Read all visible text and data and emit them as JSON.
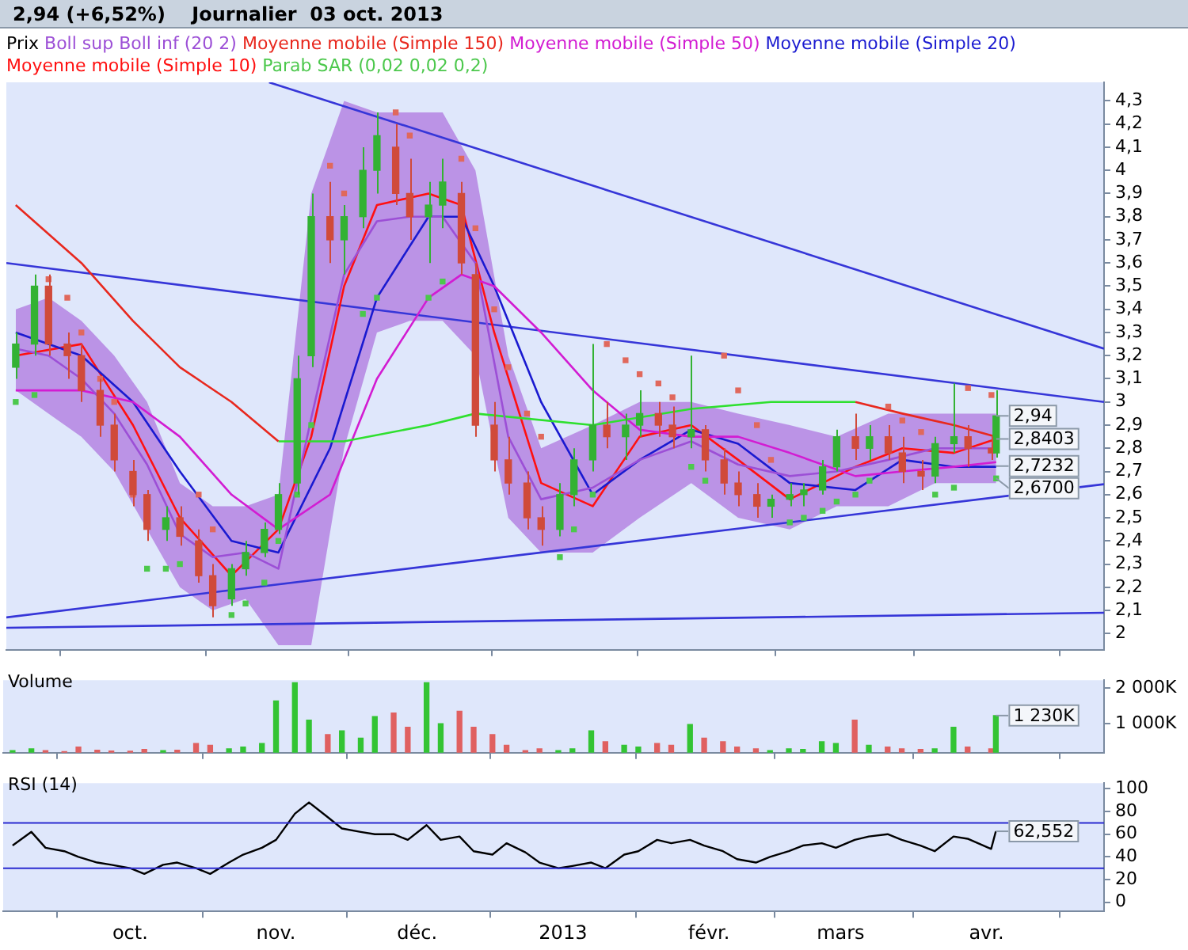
{
  "chart_data": [
    {
      "type": "candlestick",
      "title": "2,94 (+6,52%)",
      "subtitle": "Journalier  03 oct. 2013",
      "legend": "top left",
      "legend_title": "Prix",
      "tick_labels": "y",
      "xlim": [
        "2012-09-04",
        "2013-04-26"
      ],
      "xticks": [
        {
          "value": "2012-10-01",
          "label": null
        },
        {
          "value": "2012-11-01",
          "label": null
        },
        {
          "value": "2012-12-01",
          "label": null
        },
        {
          "value": "2013-01-01",
          "label": null
        },
        {
          "value": "2013-02-01",
          "label": null
        },
        {
          "value": "2013-03-01",
          "label": null
        },
        {
          "value": "2013-04-01",
          "label": null
        }
      ],
      "ylim": [
        1.93,
        4.38
      ],
      "yticks": [
        2,
        {
          "value": 2.1,
          "label": "2,1"
        },
        {
          "value": 2.2,
          "label": "2,2"
        },
        {
          "value": 2.3,
          "label": "2,3"
        },
        {
          "value": 2.4,
          "label": "2,4"
        },
        {
          "value": 2.5,
          "label": "2,5"
        },
        {
          "value": 2.6,
          "label": "2,6"
        },
        {
          "value": 2.7,
          "label": "2,7"
        },
        {
          "value": 2.8,
          "label": "2,8"
        },
        {
          "value": 2.9,
          "label": "2,9"
        },
        3,
        {
          "value": 3.1,
          "label": "3,1"
        },
        {
          "value": 3.2,
          "label": "3,2"
        },
        {
          "value": 3.3,
          "label": "3,3"
        },
        {
          "value": 3.4,
          "label": "3,4"
        },
        {
          "value": 3.5,
          "label": "3,5"
        },
        {
          "value": 3.6,
          "label": "3,6"
        },
        {
          "value": 3.7,
          "label": "3,7"
        },
        {
          "value": 3.8,
          "label": "3,8"
        },
        {
          "value": 3.9,
          "label": "3,9"
        },
        4,
        {
          "value": 4.1,
          "label": "4,1"
        },
        {
          "value": 4.2,
          "label": "4,2"
        },
        {
          "value": 4.3,
          "label": "4,3"
        }
      ],
      "x": [
        "2012-09-06",
        "2012-09-10",
        "2012-09-13",
        "2012-09-17",
        "2012-09-20",
        "2012-09-24",
        "2012-09-27",
        "2012-10-01",
        "2012-10-04",
        "2012-10-08",
        "2012-10-11",
        "2012-10-15",
        "2012-10-18",
        "2012-10-22",
        "2012-10-25",
        "2012-10-29",
        "2012-11-01",
        "2012-11-05",
        "2012-11-08",
        "2012-11-12",
        "2012-11-15",
        "2012-11-19",
        "2012-11-22",
        "2012-11-26",
        "2012-11-29",
        "2012-12-03",
        "2012-12-06",
        "2012-12-10",
        "2012-12-13",
        "2012-12-17",
        "2012-12-20",
        "2012-12-24",
        "2012-12-27",
        "2012-12-31",
        "2013-01-03",
        "2013-01-07",
        "2013-01-10",
        "2013-01-14",
        "2013-01-17",
        "2013-01-21",
        "2013-01-24",
        "2013-01-28",
        "2013-01-31",
        "2013-02-04",
        "2013-02-07",
        "2013-02-11",
        "2013-02-14",
        "2013-02-18",
        "2013-02-21",
        "2013-02-25",
        "2013-02-28",
        "2013-03-04",
        "2013-03-07",
        "2013-03-11",
        "2013-03-14",
        "2013-03-18",
        "2013-03-21",
        "2013-03-25",
        "2013-03-28",
        "2013-04-02",
        "2013-04-03"
      ],
      "ohlc": [
        [
          3.15,
          3.3,
          3.1,
          3.25
        ],
        [
          3.25,
          3.55,
          3.2,
          3.5
        ],
        [
          3.5,
          3.55,
          3.2,
          3.25
        ],
        [
          3.25,
          3.3,
          3.1,
          3.2
        ],
        [
          3.2,
          3.25,
          3.0,
          3.05
        ],
        [
          3.05,
          3.1,
          2.85,
          2.9
        ],
        [
          2.9,
          2.95,
          2.7,
          2.75
        ],
        [
          2.7,
          2.75,
          2.55,
          2.6
        ],
        [
          2.6,
          2.62,
          2.4,
          2.45
        ],
        [
          2.45,
          2.55,
          2.4,
          2.5
        ],
        [
          2.5,
          2.55,
          2.38,
          2.42
        ],
        [
          2.4,
          2.45,
          2.22,
          2.25
        ],
        [
          2.25,
          2.3,
          2.07,
          2.12
        ],
        [
          2.15,
          2.3,
          2.12,
          2.28
        ],
        [
          2.28,
          2.4,
          2.25,
          2.35
        ],
        [
          2.35,
          2.48,
          2.33,
          2.45
        ],
        [
          2.45,
          2.65,
          2.43,
          2.6
        ],
        [
          2.65,
          3.2,
          2.6,
          3.1
        ],
        [
          3.2,
          3.9,
          3.15,
          3.8
        ],
        [
          3.8,
          3.95,
          3.6,
          3.7
        ],
        [
          3.7,
          3.85,
          3.55,
          3.8
        ],
        [
          3.8,
          4.1,
          3.75,
          4.0
        ],
        [
          4.0,
          4.25,
          3.9,
          4.15
        ],
        [
          4.1,
          4.2,
          3.85,
          3.9
        ],
        [
          3.9,
          4.05,
          3.7,
          3.8
        ],
        [
          3.8,
          3.95,
          3.6,
          3.85
        ],
        [
          3.85,
          4.05,
          3.75,
          3.95
        ],
        [
          3.9,
          3.95,
          3.55,
          3.6
        ],
        [
          3.55,
          3.6,
          2.85,
          2.9
        ],
        [
          2.9,
          3.0,
          2.7,
          2.75
        ],
        [
          2.75,
          2.85,
          2.6,
          2.65
        ],
        [
          2.65,
          2.7,
          2.45,
          2.5
        ],
        [
          2.5,
          2.55,
          2.38,
          2.45
        ],
        [
          2.45,
          2.65,
          2.42,
          2.6
        ],
        [
          2.6,
          2.8,
          2.55,
          2.75
        ],
        [
          2.75,
          3.25,
          2.7,
          2.9
        ],
        [
          2.9,
          3.0,
          2.8,
          2.85
        ],
        [
          2.85,
          2.95,
          2.75,
          2.9
        ],
        [
          2.9,
          3.05,
          2.85,
          2.95
        ],
        [
          2.95,
          3.0,
          2.85,
          2.9
        ],
        [
          2.9,
          2.98,
          2.8,
          2.85
        ],
        [
          2.85,
          3.2,
          2.8,
          2.88
        ],
        [
          2.88,
          2.9,
          2.7,
          2.75
        ],
        [
          2.75,
          2.8,
          2.6,
          2.65
        ],
        [
          2.65,
          2.7,
          2.55,
          2.6
        ],
        [
          2.6,
          2.65,
          2.5,
          2.55
        ],
        [
          2.55,
          2.6,
          2.5,
          2.58
        ],
        [
          2.58,
          2.65,
          2.55,
          2.6
        ],
        [
          2.6,
          2.65,
          2.55,
          2.62
        ],
        [
          2.62,
          2.75,
          2.6,
          2.72
        ],
        [
          2.72,
          2.88,
          2.7,
          2.85
        ],
        [
          2.85,
          2.95,
          2.75,
          2.8
        ],
        [
          2.8,
          2.9,
          2.75,
          2.85
        ],
        [
          2.85,
          2.9,
          2.75,
          2.78
        ],
        [
          2.78,
          2.85,
          2.65,
          2.7
        ],
        [
          2.7,
          2.75,
          2.62,
          2.68
        ],
        [
          2.68,
          2.85,
          2.65,
          2.82
        ],
        [
          2.82,
          3.08,
          2.78,
          2.85
        ],
        [
          2.85,
          2.9,
          2.72,
          2.8
        ],
        [
          2.8,
          2.85,
          2.75,
          2.78
        ],
        [
          2.78,
          3.05,
          2.76,
          2.94
        ]
      ],
      "colors": [
        "#33b233",
        "#33b233",
        "#d04a3a",
        "#d04a3a",
        "#d04a3a",
        "#d04a3a",
        "#d04a3a",
        "#d04a3a",
        "#d04a3a",
        "#33b233",
        "#d04a3a",
        "#d04a3a",
        "#d04a3a",
        "#33b233",
        "#33b233",
        "#33b233",
        "#33b233",
        "#33b233",
        "#33b233",
        "#d04a3a",
        "#33b233",
        "#33b233",
        "#33b233",
        "#d04a3a",
        "#d04a3a",
        "#33b233",
        "#33b233",
        "#d04a3a",
        "#d04a3a",
        "#d04a3a",
        "#d04a3a",
        "#d04a3a",
        "#d04a3a",
        "#33b233",
        "#33b233",
        "#33b233",
        "#d04a3a",
        "#33b233",
        "#33b233",
        "#d04a3a",
        "#d04a3a",
        "#33b233",
        "#d04a3a",
        "#d04a3a",
        "#d04a3a",
        "#d04a3a",
        "#33b233",
        "#33b233",
        "#33b233",
        "#33b233",
        "#33b233",
        "#d04a3a",
        "#33b233",
        "#d04a3a",
        "#d04a3a",
        "#d04a3a",
        "#33b233",
        "#33b233",
        "#d04a3a",
        "#d04a3a",
        "#33b233"
      ],
      "series": [
        {
          "name": "Boll sup Boll inf (20 2)",
          "type": "line",
          "color": "#9c4fd6",
          "values": [
            3.23,
            3.2,
            3.1,
            2.95,
            2.73,
            2.43,
            2.33,
            2.35,
            2.28,
            2.93,
            3.55,
            3.78,
            3.8,
            3.8,
            3.6,
            2.85,
            2.58,
            2.63,
            2.75,
            2.83,
            2.73,
            2.68,
            2.7,
            2.75,
            2.8,
            2.8
          ],
          "upper": [
            3.4,
            3.45,
            3.35,
            3.2,
            3.0,
            2.65,
            2.55,
            2.55,
            2.6,
            3.9,
            4.3,
            4.25,
            4.25,
            4.25,
            4.0,
            3.2,
            2.8,
            2.9,
            3.0,
            3.0,
            2.95,
            2.9,
            2.85,
            2.95,
            2.95,
            2.95
          ],
          "x": [
            "2012-09-06",
            "2012-09-13",
            "2012-09-20",
            "2012-09-27",
            "2012-10-04",
            "2012-10-11",
            "2012-10-18",
            "2012-10-25",
            "2012-11-01",
            "2012-11-08",
            "2012-11-15",
            "2012-11-22",
            "2012-11-29",
            "2012-12-06",
            "2012-12-13",
            "2012-12-20",
            "2012-12-27",
            "2013-01-07",
            "2013-01-17",
            "2013-01-28",
            "2013-02-07",
            "2013-02-18",
            "2013-02-28",
            "2013-03-11",
            "2013-03-21",
            "2013-04-03"
          ],
          "lower": [
            3.05,
            2.95,
            2.85,
            2.7,
            2.45,
            2.2,
            2.1,
            2.15,
            1.95,
            1.95,
            2.8,
            3.3,
            3.35,
            3.35,
            3.2,
            2.5,
            2.35,
            2.35,
            2.5,
            2.65,
            2.5,
            2.45,
            2.55,
            2.55,
            2.65,
            2.65
          ]
        },
        {
          "name": "Moyenne mobile (Simple 150)",
          "type": "line",
          "color": "#e8281e",
          "x": [
            "2012-09-06",
            "2012-09-20",
            "2012-10-01",
            "2012-10-11",
            "2012-10-22",
            "2012-11-01",
            "2012-11-15",
            "2013-01-07",
            "2013-03-04",
            "2013-03-14",
            "2013-03-25",
            "2013-04-03"
          ],
          "values": [
            3.85,
            3.6,
            3.35,
            3.15,
            3.0,
            2.83,
            null,
            null,
            3.0,
            2.95,
            2.9,
            2.85
          ]
        },
        {
          "type": "line",
          "color": "#2ee02e",
          "x": [
            "2012-11-01",
            "2012-11-15",
            "2012-12-03",
            "2012-12-13",
            "2013-01-07",
            "2013-01-28",
            "2013-02-14",
            "2013-03-04"
          ],
          "values": [
            2.83,
            2.83,
            2.9,
            2.95,
            2.9,
            2.97,
            3.0,
            3.0
          ]
        },
        {
          "name": "Moyenne mobile (Simple 50)",
          "type": "line",
          "color": "#d21cd2",
          "x": [
            "2012-09-06",
            "2012-09-20",
            "2012-10-01",
            "2012-10-11",
            "2012-10-22",
            "2012-11-01",
            "2012-11-12",
            "2012-11-22",
            "2012-12-03",
            "2012-12-10",
            "2012-12-17",
            "2012-12-27",
            "2013-01-07",
            "2013-01-17",
            "2013-01-28",
            "2013-02-07",
            "2013-02-18",
            "2013-03-04",
            "2013-03-14",
            "2013-03-25",
            "2013-04-03"
          ],
          "values": [
            3.05,
            3.05,
            3.0,
            2.85,
            2.6,
            2.45,
            2.6,
            3.1,
            3.45,
            3.55,
            3.5,
            3.3,
            3.05,
            2.88,
            2.85,
            2.85,
            2.78,
            2.68,
            2.7,
            2.72,
            2.74
          ]
        },
        {
          "name": "Moyenne mobile (Simple 20)",
          "type": "line",
          "color": "#1a1ad0",
          "x": [
            "2012-09-06",
            "2012-09-20",
            "2012-10-01",
            "2012-10-11",
            "2012-10-22",
            "2012-11-01",
            "2012-11-12",
            "2012-11-22",
            "2012-12-03",
            "2012-12-10",
            "2012-12-17",
            "2012-12-27",
            "2013-01-07",
            "2013-01-17",
            "2013-01-28",
            "2013-02-07",
            "2013-02-18",
            "2013-03-04",
            "2013-03-14",
            "2013-03-25",
            "2013-04-03"
          ],
          "values": [
            3.3,
            3.2,
            3.0,
            2.7,
            2.4,
            2.35,
            2.8,
            3.45,
            3.8,
            3.8,
            3.5,
            3.0,
            2.6,
            2.75,
            2.88,
            2.82,
            2.65,
            2.62,
            2.75,
            2.72,
            2.72
          ]
        },
        {
          "name": "Moyenne mobile (Simple 10)",
          "type": "line",
          "color": "#ff1010",
          "x": [
            "2012-09-06",
            "2012-09-20",
            "2012-10-01",
            "2012-10-11",
            "2012-10-22",
            "2012-11-01",
            "2012-11-08",
            "2012-11-15",
            "2012-11-22",
            "2012-12-03",
            "2012-12-10",
            "2012-12-17",
            "2012-12-27",
            "2013-01-07",
            "2013-01-17",
            "2013-01-28",
            "2013-02-07",
            "2013-02-18",
            "2013-03-04",
            "2013-03-14",
            "2013-03-25",
            "2013-04-03"
          ],
          "values": [
            3.2,
            3.25,
            2.9,
            2.5,
            2.25,
            2.45,
            2.85,
            3.5,
            3.85,
            3.9,
            3.85,
            3.3,
            2.65,
            2.55,
            2.85,
            2.9,
            2.75,
            2.58,
            2.72,
            2.8,
            2.78,
            2.84
          ]
        },
        {
          "name": "Parab SAR (0,02 0,02 0,2)",
          "type": "scatter",
          "marker": "square",
          "color": "#4cc84c",
          "values": [
            3.0,
            3.03,
            3.53,
            3.45,
            3.3,
            3.1,
            3.0,
            2.6,
            2.28,
            2.28,
            2.3,
            2.6,
            2.45,
            2.08,
            2.13,
            2.22,
            2.4,
            2.6,
            2.9,
            4.02,
            3.9,
            3.38,
            3.45,
            4.25,
            4.15,
            3.45,
            3.52,
            4.05,
            3.75,
            3.4,
            3.15,
            2.95,
            2.85,
            2.33,
            2.45,
            2.6,
            3.25,
            3.18,
            3.12,
            3.08,
            3.02,
            2.72,
            2.66,
            3.2,
            3.05,
            2.9,
            2.75,
            2.48,
            2.5,
            2.53,
            2.57,
            2.6,
            2.66,
            2.98,
            2.92,
            2.87,
            2.6,
            2.63,
            3.06,
            3.03,
            2.67
          ],
          "colors": [
            "#4cc84c",
            "#4cc84c",
            "#e0685c",
            "#e0685c",
            "#e0685c",
            "#e0685c",
            "#e0685c",
            "#e0685c",
            "#4cc84c",
            "#4cc84c",
            "#4cc84c",
            "#e0685c",
            "#e0685c",
            "#4cc84c",
            "#4cc84c",
            "#4cc84c",
            "#4cc84c",
            "#4cc84c",
            "#4cc84c",
            "#e0685c",
            "#e0685c",
            "#4cc84c",
            "#4cc84c",
            "#e0685c",
            "#e0685c",
            "#4cc84c",
            "#4cc84c",
            "#e0685c",
            "#e0685c",
            "#e0685c",
            "#e0685c",
            "#e0685c",
            "#e0685c",
            "#4cc84c",
            "#4cc84c",
            "#4cc84c",
            "#e0685c",
            "#e0685c",
            "#e0685c",
            "#e0685c",
            "#e0685c",
            "#4cc84c",
            "#4cc84c",
            "#e0685c",
            "#e0685c",
            "#e0685c",
            "#e0685c",
            "#4cc84c",
            "#4cc84c",
            "#4cc84c",
            "#4cc84c",
            "#4cc84c",
            "#4cc84c",
            "#e0685c",
            "#e0685c",
            "#e0685c",
            "#4cc84c",
            "#4cc84c",
            "#e0685c",
            "#e0685c",
            "#4cc84c"
          ]
        },
        {
          "type": "line",
          "color": "#3636d8",
          "x": [
            "2012-10-30",
            "2013-04-26"
          ],
          "values": [
            4.38,
            3.23
          ]
        },
        {
          "type": "line",
          "color": "#3636d8",
          "x": [
            "2012-09-04",
            "2013-04-26"
          ],
          "values": [
            3.6,
            3.0
          ]
        },
        {
          "type": "line",
          "color": "#3636d8",
          "x": [
            "2012-09-04",
            "2013-04-26"
          ],
          "values": [
            2.07,
            2.645
          ]
        },
        {
          "type": "line",
          "color": "#3636d8",
          "x": [
            "2012-09-04",
            "2013-04-26"
          ],
          "values": [
            2.025,
            2.09
          ]
        }
      ],
      "annotations": [
        {
          "text": "2,94",
          "x": "2013-04-03",
          "y": 2.94
        },
        {
          "text": "2,8403",
          "x": "2013-04-03",
          "y": 2.8403
        },
        {
          "text": "2,7232",
          "x": "2013-04-03",
          "y": 2.7232
        },
        {
          "text": "2,6700",
          "x": "2013-04-03",
          "y": 2.67
        }
      ]
    },
    {
      "type": "bar",
      "title": "Volume",
      "tick_labels": "y",
      "xlim": [
        "2012-09-04",
        "2013-04-26"
      ],
      "xticks": [
        {
          "value": "2012-10-01",
          "label": null
        },
        {
          "value": "2012-11-01",
          "label": null
        },
        {
          "value": "2012-12-01",
          "label": null
        },
        {
          "value": "2013-01-01",
          "label": null
        },
        {
          "value": "2013-02-01",
          "label": null
        },
        {
          "value": "2013-03-01",
          "label": null
        },
        {
          "value": "2013-04-01",
          "label": null
        }
      ],
      "ylim": [
        190,
        2220
      ],
      "yticks": [
        {
          "value": 1000,
          "label": "1 000K"
        },
        {
          "value": 2000,
          "label": "2 000K"
        }
      ],
      "x": [
        "2012-09-06",
        "2012-09-10",
        "2012-09-13",
        "2012-09-17",
        "2012-09-20",
        "2012-09-24",
        "2012-09-27",
        "2012-10-01",
        "2012-10-04",
        "2012-10-08",
        "2012-10-11",
        "2012-10-15",
        "2012-10-18",
        "2012-10-22",
        "2012-10-25",
        "2012-10-29",
        "2012-11-01",
        "2012-11-05",
        "2012-11-08",
        "2012-11-12",
        "2012-11-15",
        "2012-11-19",
        "2012-11-22",
        "2012-11-26",
        "2012-11-29",
        "2012-12-03",
        "2012-12-06",
        "2012-12-10",
        "2012-12-13",
        "2012-12-17",
        "2012-12-20",
        "2012-12-24",
        "2012-12-27",
        "2012-12-31",
        "2013-01-03",
        "2013-01-07",
        "2013-01-10",
        "2013-01-14",
        "2013-01-17",
        "2013-01-21",
        "2013-01-24",
        "2013-01-28",
        "2013-01-31",
        "2013-02-04",
        "2013-02-07",
        "2013-02-11",
        "2013-02-14",
        "2013-02-18",
        "2013-02-21",
        "2013-02-25",
        "2013-02-28",
        "2013-03-04",
        "2013-03-07",
        "2013-03-11",
        "2013-03-14",
        "2013-03-18",
        "2013-03-21",
        "2013-03-25",
        "2013-03-28",
        "2013-04-02",
        "2013-04-03"
      ],
      "values": [
        250,
        300,
        250,
        220,
        350,
        260,
        240,
        230,
        280,
        250,
        260,
        450,
        400,
        300,
        350,
        450,
        1640,
        2150,
        1100,
        700,
        800,
        600,
        1200,
        1300,
        900,
        2150,
        1000,
        1350,
        900,
        700,
        400,
        250,
        300,
        250,
        300,
        800,
        500,
        400,
        350,
        450,
        400,
        980,
        600,
        500,
        350,
        300,
        250,
        300,
        280,
        500,
        450,
        1100,
        400,
        350,
        300,
        280,
        300,
        900,
        350,
        300,
        1230
      ],
      "colors": [
        "#33c433",
        "#33c433",
        "#e06060",
        "#e06060",
        "#e06060",
        "#e06060",
        "#e06060",
        "#e06060",
        "#e06060",
        "#33c433",
        "#e06060",
        "#e06060",
        "#e06060",
        "#33c433",
        "#33c433",
        "#33c433",
        "#33c433",
        "#33c433",
        "#33c433",
        "#e06060",
        "#33c433",
        "#33c433",
        "#33c433",
        "#e06060",
        "#e06060",
        "#33c433",
        "#33c433",
        "#e06060",
        "#e06060",
        "#e06060",
        "#e06060",
        "#e06060",
        "#e06060",
        "#33c433",
        "#33c433",
        "#33c433",
        "#e06060",
        "#33c433",
        "#33c433",
        "#e06060",
        "#e06060",
        "#33c433",
        "#e06060",
        "#e06060",
        "#e06060",
        "#e06060",
        "#33c433",
        "#33c433",
        "#33c433",
        "#33c433",
        "#33c433",
        "#e06060",
        "#33c433",
        "#e06060",
        "#e06060",
        "#e06060",
        "#33c433",
        "#33c433",
        "#e06060",
        "#e06060",
        "#33c433"
      ],
      "annotations": [
        {
          "text": "1 230K",
          "x": "2013-04-03",
          "y": 1230
        }
      ]
    },
    {
      "type": "line",
      "title": "RSI (14)",
      "color": "#000000",
      "xlim": [
        "2012-09-04",
        "2013-04-26"
      ],
      "xticks": [
        {
          "value": "2012-10-01",
          "label": "oct."
        },
        {
          "value": "2012-11-01",
          "label": "nov."
        },
        {
          "value": "2012-12-01",
          "label": "déc."
        },
        {
          "value": "2013-01-01",
          "label": "2013"
        },
        {
          "value": "2013-02-01",
          "label": "févr."
        },
        {
          "value": "2013-03-01",
          "label": "mars"
        },
        {
          "value": "2013-04-01",
          "label": "avr."
        }
      ],
      "ylim": [
        -8,
        105
      ],
      "yticks": [
        0,
        20,
        40,
        60,
        80,
        100
      ],
      "x": [
        "2012-09-06",
        "2012-09-10",
        "2012-09-13",
        "2012-09-17",
        "2012-09-20",
        "2012-09-24",
        "2012-09-27",
        "2012-10-01",
        "2012-10-04",
        "2012-10-08",
        "2012-10-11",
        "2012-10-15",
        "2012-10-18",
        "2012-10-22",
        "2012-10-25",
        "2012-10-29",
        "2012-11-01",
        "2012-11-05",
        "2012-11-08",
        "2012-11-12",
        "2012-11-15",
        "2012-11-19",
        "2012-11-22",
        "2012-11-26",
        "2012-11-29",
        "2012-12-03",
        "2012-12-06",
        "2012-12-10",
        "2012-12-13",
        "2012-12-17",
        "2012-12-20",
        "2012-12-24",
        "2012-12-27",
        "2012-12-31",
        "2013-01-03",
        "2013-01-07",
        "2013-01-10",
        "2013-01-14",
        "2013-01-17",
        "2013-01-21",
        "2013-01-24",
        "2013-01-28",
        "2013-01-31",
        "2013-02-04",
        "2013-02-07",
        "2013-02-11",
        "2013-02-14",
        "2013-02-18",
        "2013-02-21",
        "2013-02-25",
        "2013-02-28",
        "2013-03-04",
        "2013-03-07",
        "2013-03-11",
        "2013-03-14",
        "2013-03-18",
        "2013-03-21",
        "2013-03-25",
        "2013-03-28",
        "2013-04-02",
        "2013-04-03"
      ],
      "values": [
        50,
        62,
        48,
        45,
        40,
        35,
        33,
        30,
        25,
        33,
        35,
        30,
        25,
        35,
        42,
        48,
        55,
        78,
        88,
        75,
        65,
        62,
        60,
        60,
        55,
        68,
        55,
        58,
        45,
        42,
        52,
        44,
        35,
        30,
        32,
        35,
        30,
        42,
        45,
        55,
        52,
        55,
        50,
        45,
        38,
        35,
        40,
        45,
        50,
        52,
        48,
        55,
        58,
        60,
        55,
        50,
        45,
        58,
        56,
        47,
        62.552
      ],
      "ref_lines": [
        {
          "axis": "y",
          "value": 70,
          "color": "#2b2bd0"
        },
        {
          "axis": "y",
          "value": 30,
          "color": "#2b2bd0"
        }
      ],
      "annotations": [
        {
          "text": "62,552",
          "x": "2013-04-03",
          "y": 62.552
        }
      ]
    }
  ]
}
